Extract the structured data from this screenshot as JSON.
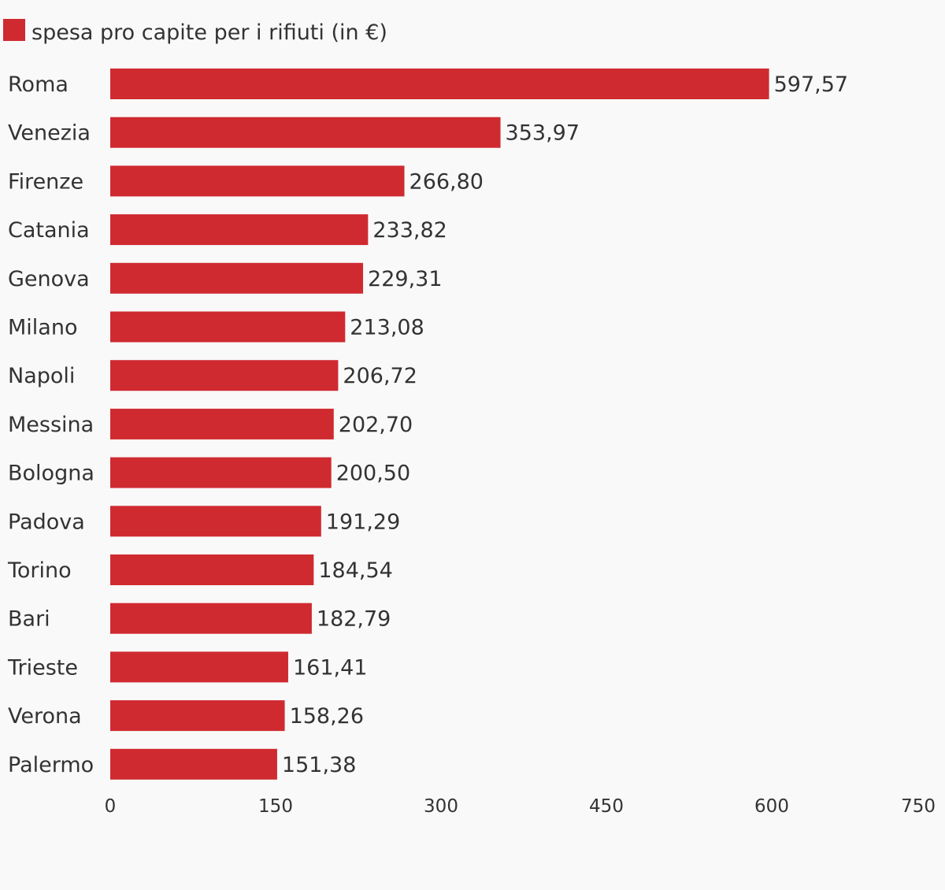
{
  "chart_data": {
    "type": "bar",
    "orientation": "horizontal",
    "categories": [
      "Roma",
      "Venezia",
      "Firenze",
      "Catania",
      "Genova",
      "Milano",
      "Napoli",
      "Messina",
      "Bologna",
      "Padova",
      "Torino",
      "Bari",
      "Trieste",
      "Verona",
      "Palermo"
    ],
    "series": [
      {
        "name": "spesa pro capite per i rifiuti (in €)",
        "values": [
          597.57,
          353.97,
          266.8,
          233.82,
          229.31,
          213.08,
          206.72,
          202.7,
          200.5,
          191.29,
          184.54,
          182.79,
          161.41,
          158.26,
          151.38
        ],
        "labels": [
          "597,57",
          "353,97",
          "266,80",
          "233,82",
          "229,31",
          "213,08",
          "206,72",
          "202,70",
          "200,50",
          "191,29",
          "184,54",
          "182,79",
          "161,41",
          "158,26",
          "151,38"
        ]
      }
    ],
    "x_ticks": [
      "0",
      "150",
      "300",
      "450",
      "600",
      "750"
    ],
    "xlim": [
      0,
      750
    ],
    "grid": false,
    "legend_position": "top-left",
    "colors": {
      "bar": "#cf2a30",
      "text": "#333333",
      "background": "#f9f9f9"
    }
  }
}
